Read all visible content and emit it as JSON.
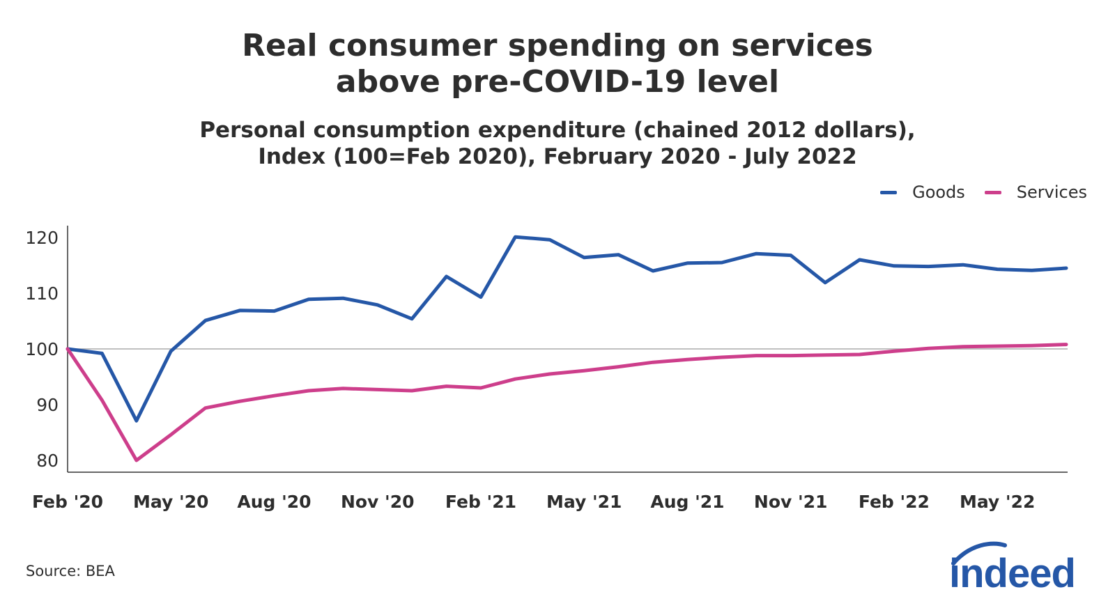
{
  "title_lines": [
    "Real consumer spending on services",
    "above pre-COVID-19 level"
  ],
  "subtitle_lines": [
    "Personal consumption expenditure (chained 2012 dollars),",
    "Index (100=Feb 2020), February 2020 - July 2022"
  ],
  "source": "Source: BEA",
  "logo_text": "indeed",
  "colors": {
    "goods": "#2557a7",
    "services": "#cd3e8b",
    "axis": "#333333",
    "reference": "#aaaaaa",
    "logo": "#2557a7"
  },
  "chart_data": {
    "type": "line",
    "title": "Real consumer spending on services above pre-COVID-19 level",
    "subtitle": "Personal consumption expenditure (chained 2012 dollars), Index (100=Feb 2020), February 2020 - July 2022",
    "xlabel": "",
    "ylabel": "",
    "ylim": [
      78,
      122
    ],
    "yticks": [
      80,
      90,
      100,
      110,
      120
    ],
    "reference_line": 100,
    "grid": false,
    "legend_position": "top-right",
    "x": [
      "Feb '20",
      "Mar '20",
      "Apr '20",
      "May '20",
      "Jun '20",
      "Jul '20",
      "Aug '20",
      "Sep '20",
      "Oct '20",
      "Nov '20",
      "Dec '20",
      "Jan '21",
      "Feb '21",
      "Mar '21",
      "Apr '21",
      "May '21",
      "Jun '21",
      "Jul '21",
      "Aug '21",
      "Sep '21",
      "Oct '21",
      "Nov '21",
      "Dec '21",
      "Jan '22",
      "Feb '22",
      "Mar '22",
      "Apr '22",
      "May '22",
      "Jun '22",
      "Jul '22"
    ],
    "xtick_labels": [
      {
        "index": 0,
        "label": "Feb '20"
      },
      {
        "index": 3,
        "label": "May '20"
      },
      {
        "index": 6,
        "label": "Aug '20"
      },
      {
        "index": 9,
        "label": "Nov '20"
      },
      {
        "index": 12,
        "label": "Feb '21"
      },
      {
        "index": 15,
        "label": "May '21"
      },
      {
        "index": 18,
        "label": "Aug '21"
      },
      {
        "index": 21,
        "label": "Nov '21"
      },
      {
        "index": 24,
        "label": "Feb '22"
      },
      {
        "index": 27,
        "label": "May '22"
      }
    ],
    "series": [
      {
        "name": "Goods",
        "color": "#2557a7",
        "values": [
          100.0,
          99.2,
          87.1,
          99.6,
          105.1,
          106.9,
          106.8,
          108.9,
          109.1,
          107.9,
          105.4,
          113.0,
          109.3,
          120.1,
          119.6,
          116.4,
          116.9,
          114.0,
          115.4,
          115.5,
          117.1,
          116.8,
          111.9,
          116.0,
          114.9,
          114.8,
          115.1,
          114.3,
          114.1,
          114.5
        ]
      },
      {
        "name": "Services",
        "color": "#cd3e8b",
        "values": [
          100.0,
          90.8,
          80.0,
          84.6,
          89.4,
          90.6,
          91.6,
          92.5,
          92.9,
          92.7,
          92.5,
          93.3,
          93.0,
          94.6,
          95.5,
          96.1,
          96.8,
          97.6,
          98.1,
          98.5,
          98.8,
          98.8,
          98.9,
          99.0,
          99.6,
          100.1,
          100.4,
          100.5,
          100.6,
          100.8
        ]
      }
    ]
  }
}
